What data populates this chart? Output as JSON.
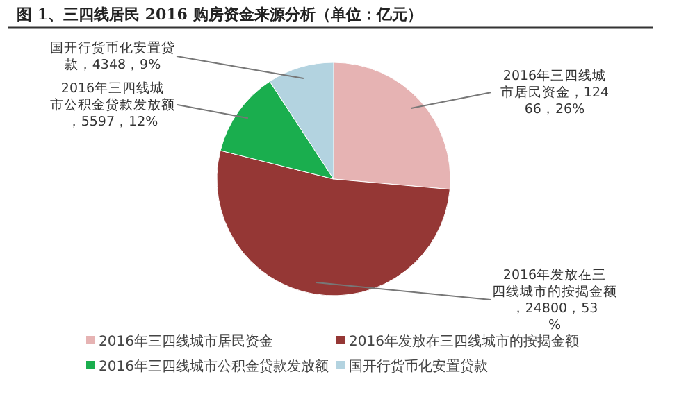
{
  "chart_data": {
    "type": "pie",
    "title": "图 1、三四线居民 2016 购房资金来源分析（单位：亿元）",
    "categories": [
      "2016年三四线城市居民资金",
      "2016年发放在三四线城市的按揭金额",
      "2016年三四线城市公积金贷款发放额",
      "国开行货币化安置贷款"
    ],
    "values": [
      12466,
      24800,
      5597,
      4348
    ],
    "value_labels": [
      "2016年三四线城市居民资金，12466，26%",
      "2016年发放在三四线城市的按揭金额，24800，53%",
      "2016年三四线城市公积金贷款发放额，5597，12%",
      "国开行货币化安置贷款，4348，9%"
    ],
    "colors": [
      "#e6b3b3",
      "#953735",
      "#1aae4e",
      "#b3d3e0"
    ],
    "legend": "bottom"
  }
}
